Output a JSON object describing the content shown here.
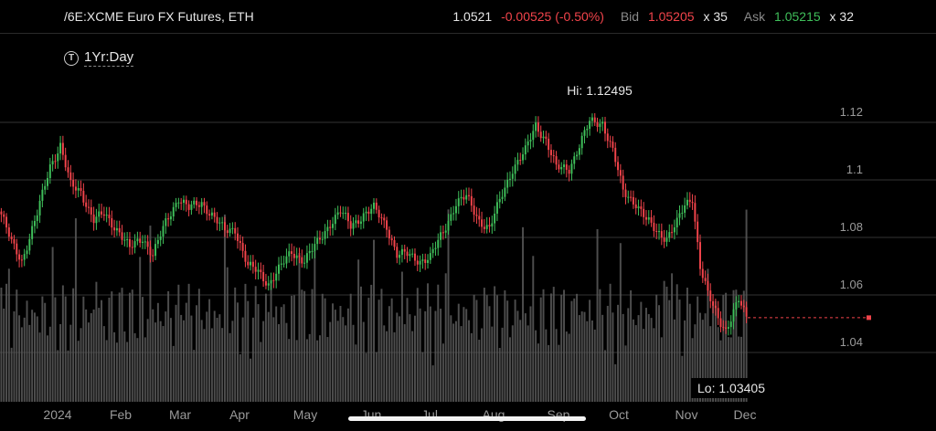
{
  "header": {
    "symbol": "/6E:XCME Euro FX Futures, ETH",
    "last": "1.0521",
    "change": "-0.00525 (-0.50%)",
    "bid_label": "Bid",
    "bid": "1.05205",
    "bid_size": "x 35",
    "ask_label": "Ask",
    "ask": "1.05215",
    "ask_size": "x 32"
  },
  "period": {
    "icon": "clock-icon",
    "label": "1Yr:Day"
  },
  "colors": {
    "up": "#3fbf5a",
    "down": "#f2444b",
    "volume": "#5a5a5a",
    "grid": "#333333",
    "axis_text": "#9a9a9a"
  },
  "chart_data": {
    "type": "candlestick",
    "y_ticks": [
      "1.12",
      "1.1",
      "1.08",
      "1.06",
      "1.04"
    ],
    "y_tick_values": [
      1.12,
      1.1,
      1.08,
      1.06,
      1.04
    ],
    "ylim": [
      1.0275,
      1.1345
    ],
    "x_ticks": [
      "2024",
      "Feb",
      "Mar",
      "Apr",
      "May",
      "Jun",
      "Jul",
      "Aug",
      "Sep",
      "Oct",
      "Nov",
      "Dec"
    ],
    "hi_label": "Hi: 1.12495",
    "lo_label": "Lo: 1.03405",
    "hi": 1.12495,
    "lo": 1.03405,
    "current_price": 1.0521,
    "close_anchors": [
      [
        0,
        1.088
      ],
      [
        4,
        1.078
      ],
      [
        8,
        1.072
      ],
      [
        14,
        1.088
      ],
      [
        19,
        1.105
      ],
      [
        23,
        1.112
      ],
      [
        27,
        1.098
      ],
      [
        31,
        1.096
      ],
      [
        36,
        1.086
      ],
      [
        40,
        1.088
      ],
      [
        46,
        1.082
      ],
      [
        50,
        1.076
      ],
      [
        55,
        1.08
      ],
      [
        59,
        1.074
      ],
      [
        64,
        1.085
      ],
      [
        69,
        1.094
      ],
      [
        73,
        1.09
      ],
      [
        78,
        1.092
      ],
      [
        82,
        1.088
      ],
      [
        87,
        1.082
      ],
      [
        91,
        1.083
      ],
      [
        96,
        1.07
      ],
      [
        100,
        1.068
      ],
      [
        104,
        1.064
      ],
      [
        109,
        1.07
      ],
      [
        113,
        1.075
      ],
      [
        118,
        1.072
      ],
      [
        123,
        1.078
      ],
      [
        128,
        1.085
      ],
      [
        132,
        1.089
      ],
      [
        136,
        1.084
      ],
      [
        141,
        1.088
      ],
      [
        145,
        1.09
      ],
      [
        150,
        1.084
      ],
      [
        154,
        1.074
      ],
      [
        158,
        1.074
      ],
      [
        163,
        1.072
      ],
      [
        167,
        1.073
      ],
      [
        172,
        1.082
      ],
      [
        177,
        1.092
      ],
      [
        181,
        1.094
      ],
      [
        186,
        1.086
      ],
      [
        190,
        1.083
      ],
      [
        195,
        1.095
      ],
      [
        199,
        1.104
      ],
      [
        204,
        1.11
      ],
      [
        208,
        1.119
      ],
      [
        212,
        1.114
      ],
      [
        216,
        1.104
      ],
      [
        221,
        1.104
      ],
      [
        225,
        1.112
      ],
      [
        229,
        1.12
      ],
      [
        234,
        1.12
      ],
      [
        238,
        1.11
      ],
      [
        242,
        1.096
      ],
      [
        247,
        1.092
      ],
      [
        251,
        1.086
      ],
      [
        255,
        1.082
      ],
      [
        259,
        1.08
      ],
      [
        263,
        1.085
      ],
      [
        266,
        1.091
      ],
      [
        269,
        1.094
      ],
      [
        272,
        1.07
      ],
      [
        275,
        1.06
      ],
      [
        279,
        1.052
      ],
      [
        282,
        1.048
      ],
      [
        285,
        1.054
      ],
      [
        287,
        1.058
      ],
      [
        290,
        1.052
      ]
    ]
  }
}
